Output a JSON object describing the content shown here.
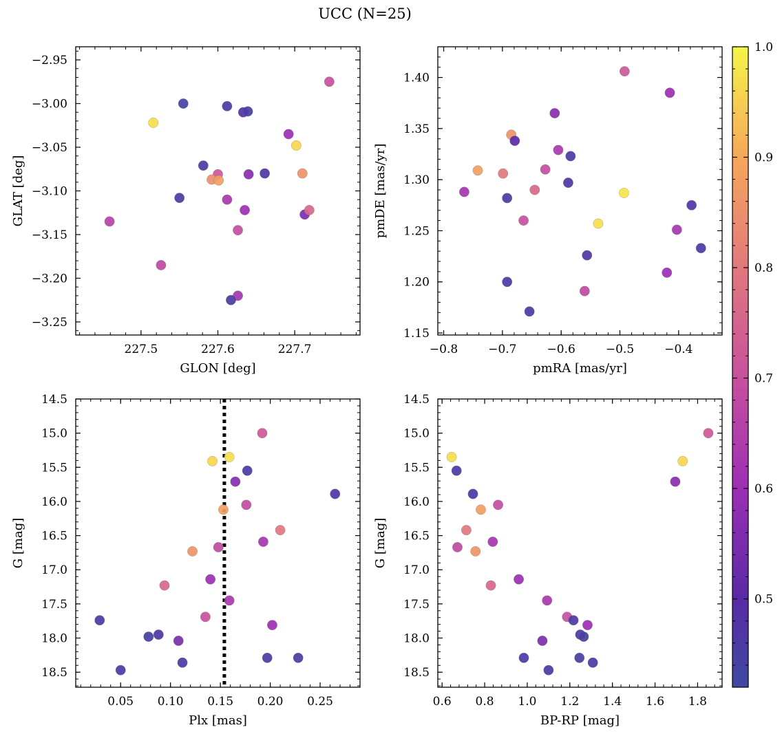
{
  "figure": {
    "title": "UCC (N=25)"
  },
  "colorbar": {
    "colormap": "plasma",
    "range": [
      0.42,
      1.0
    ],
    "ticks": [
      0.5,
      0.6,
      0.7,
      0.8,
      0.9,
      1.0
    ],
    "tick_labels": [
      "0.5",
      "0.6",
      "0.7",
      "0.8",
      "0.9",
      "1.0"
    ]
  },
  "chart_data": [
    {
      "type": "scatter",
      "xlabel": "GLON [deg]",
      "ylabel": "GLAT [deg]",
      "xlim": [
        227.415,
        227.785
      ],
      "ylim": [
        -3.265,
        -2.935
      ],
      "xticks": [
        227.5,
        227.6,
        227.7
      ],
      "xtick_labels": [
        "227.5",
        "227.6",
        "227.7"
      ],
      "yticks": [
        -2.95,
        -3.0,
        -3.05,
        -3.1,
        -3.15,
        -3.2,
        -3.25
      ],
      "ytick_labels": [
        "−2.95",
        "−3.00",
        "−3.05",
        "−3.10",
        "−3.15",
        "−3.20",
        "−3.25"
      ],
      "y_inverted": false,
      "points": [
        {
          "x": 227.555,
          "y": -3.0,
          "c": 0.44
        },
        {
          "x": 227.612,
          "y": -3.003,
          "c": 0.46
        },
        {
          "x": 227.633,
          "y": -3.01,
          "c": 0.48
        },
        {
          "x": 227.639,
          "y": -3.009,
          "c": 0.45
        },
        {
          "x": 227.516,
          "y": -3.022,
          "c": 0.97
        },
        {
          "x": 227.745,
          "y": -2.975,
          "c": 0.7
        },
        {
          "x": 227.692,
          "y": -3.035,
          "c": 0.6
        },
        {
          "x": 227.702,
          "y": -3.048,
          "c": 0.96
        },
        {
          "x": 227.581,
          "y": -3.071,
          "c": 0.46
        },
        {
          "x": 227.6,
          "y": -3.081,
          "c": 0.72
        },
        {
          "x": 227.592,
          "y": -3.087,
          "c": 0.85
        },
        {
          "x": 227.601,
          "y": -3.088,
          "c": 0.88
        },
        {
          "x": 227.64,
          "y": -3.081,
          "c": 0.57
        },
        {
          "x": 227.661,
          "y": -3.08,
          "c": 0.47
        },
        {
          "x": 227.71,
          "y": -3.08,
          "c": 0.86
        },
        {
          "x": 227.55,
          "y": -3.108,
          "c": 0.45
        },
        {
          "x": 227.612,
          "y": -3.11,
          "c": 0.63
        },
        {
          "x": 227.635,
          "y": -3.122,
          "c": 0.6
        },
        {
          "x": 227.713,
          "y": -3.127,
          "c": 0.55
        },
        {
          "x": 227.719,
          "y": -3.122,
          "c": 0.76
        },
        {
          "x": 227.459,
          "y": -3.135,
          "c": 0.66
        },
        {
          "x": 227.626,
          "y": -3.145,
          "c": 0.69
        },
        {
          "x": 227.526,
          "y": -3.185,
          "c": 0.68
        },
        {
          "x": 227.626,
          "y": -3.22,
          "c": 0.62
        },
        {
          "x": 227.617,
          "y": -3.225,
          "c": 0.45
        }
      ]
    },
    {
      "type": "scatter",
      "xlabel": "pmRA [mas/yr]",
      "ylabel": "pmDE [mas/yr]",
      "xlim": [
        -0.81,
        -0.326
      ],
      "ylim": [
        1.148,
        1.43
      ],
      "xticks": [
        -0.8,
        -0.7,
        -0.6,
        -0.5,
        -0.4
      ],
      "xtick_labels": [
        "−0.8",
        "−0.7",
        "−0.6",
        "−0.5",
        "−0.4"
      ],
      "yticks": [
        1.15,
        1.2,
        1.25,
        1.3,
        1.35,
        1.4
      ],
      "ytick_labels": [
        "1.15",
        "1.20",
        "1.25",
        "1.30",
        "1.35",
        "1.40"
      ],
      "y_inverted": false,
      "points": [
        {
          "x": -0.492,
          "y": 1.406,
          "c": 0.72
        },
        {
          "x": -0.415,
          "y": 1.385,
          "c": 0.6
        },
        {
          "x": -0.611,
          "y": 1.365,
          "c": 0.57
        },
        {
          "x": -0.685,
          "y": 1.344,
          "c": 0.86
        },
        {
          "x": -0.679,
          "y": 1.338,
          "c": 0.5
        },
        {
          "x": -0.605,
          "y": 1.329,
          "c": 0.63
        },
        {
          "x": -0.584,
          "y": 1.323,
          "c": 0.46
        },
        {
          "x": -0.742,
          "y": 1.309,
          "c": 0.88
        },
        {
          "x": -0.699,
          "y": 1.306,
          "c": 0.8
        },
        {
          "x": -0.627,
          "y": 1.31,
          "c": 0.69
        },
        {
          "x": -0.765,
          "y": 1.288,
          "c": 0.62
        },
        {
          "x": -0.645,
          "y": 1.29,
          "c": 0.76
        },
        {
          "x": -0.588,
          "y": 1.297,
          "c": 0.47
        },
        {
          "x": -0.493,
          "y": 1.287,
          "c": 0.98
        },
        {
          "x": -0.692,
          "y": 1.282,
          "c": 0.46
        },
        {
          "x": -0.378,
          "y": 1.275,
          "c": 0.47
        },
        {
          "x": -0.664,
          "y": 1.26,
          "c": 0.7
        },
        {
          "x": -0.537,
          "y": 1.257,
          "c": 0.97
        },
        {
          "x": -0.403,
          "y": 1.251,
          "c": 0.62
        },
        {
          "x": -0.362,
          "y": 1.233,
          "c": 0.46
        },
        {
          "x": -0.556,
          "y": 1.226,
          "c": 0.47
        },
        {
          "x": -0.42,
          "y": 1.209,
          "c": 0.6
        },
        {
          "x": -0.692,
          "y": 1.2,
          "c": 0.46
        },
        {
          "x": -0.56,
          "y": 1.191,
          "c": 0.68
        },
        {
          "x": -0.654,
          "y": 1.171,
          "c": 0.46
        }
      ]
    },
    {
      "type": "scatter",
      "xlabel": "Plx [mas]",
      "ylabel": "G [mag]",
      "xlim": [
        0.005,
        0.29
      ],
      "ylim": [
        18.72,
        14.5
      ],
      "xticks": [
        0.05,
        0.1,
        0.15,
        0.2,
        0.25
      ],
      "xtick_labels": [
        "0.05",
        "0.10",
        "0.15",
        "0.20",
        "0.25"
      ],
      "yticks": [
        14.5,
        15.0,
        15.5,
        16.0,
        16.5,
        17.0,
        17.5,
        18.0,
        18.5
      ],
      "ytick_labels": [
        "14.5",
        "15.0",
        "15.5",
        "16.0",
        "16.5",
        "17.0",
        "17.5",
        "18.0",
        "18.5"
      ],
      "y_inverted": true,
      "vline": {
        "x": 0.154,
        "style": "dotted",
        "color": "#000000"
      },
      "points": [
        {
          "x": 0.192,
          "y": 15.0,
          "c": 0.72
        },
        {
          "x": 0.159,
          "y": 15.35,
          "c": 0.97
        },
        {
          "x": 0.142,
          "y": 15.41,
          "c": 0.96
        },
        {
          "x": 0.177,
          "y": 15.55,
          "c": 0.46
        },
        {
          "x": 0.165,
          "y": 15.71,
          "c": 0.57
        },
        {
          "x": 0.265,
          "y": 15.89,
          "c": 0.47
        },
        {
          "x": 0.176,
          "y": 16.05,
          "c": 0.69
        },
        {
          "x": 0.153,
          "y": 16.12,
          "c": 0.88
        },
        {
          "x": 0.21,
          "y": 16.42,
          "c": 0.8
        },
        {
          "x": 0.193,
          "y": 16.59,
          "c": 0.62
        },
        {
          "x": 0.148,
          "y": 16.67,
          "c": 0.68
        },
        {
          "x": 0.122,
          "y": 16.73,
          "c": 0.86
        },
        {
          "x": 0.14,
          "y": 17.14,
          "c": 0.6
        },
        {
          "x": 0.094,
          "y": 17.23,
          "c": 0.76
        },
        {
          "x": 0.159,
          "y": 17.45,
          "c": 0.63
        },
        {
          "x": 0.135,
          "y": 17.69,
          "c": 0.7
        },
        {
          "x": 0.029,
          "y": 17.74,
          "c": 0.46
        },
        {
          "x": 0.202,
          "y": 17.81,
          "c": 0.6
        },
        {
          "x": 0.088,
          "y": 17.95,
          "c": 0.47
        },
        {
          "x": 0.078,
          "y": 17.98,
          "c": 0.45
        },
        {
          "x": 0.108,
          "y": 18.04,
          "c": 0.55
        },
        {
          "x": 0.197,
          "y": 18.29,
          "c": 0.46
        },
        {
          "x": 0.228,
          "y": 18.29,
          "c": 0.45
        },
        {
          "x": 0.112,
          "y": 18.36,
          "c": 0.46
        },
        {
          "x": 0.05,
          "y": 18.47,
          "c": 0.46
        }
      ]
    },
    {
      "type": "scatter",
      "xlabel": "BP-RP [mag]",
      "ylabel": "G [mag]",
      "xlim": [
        0.58,
        1.915
      ],
      "ylim": [
        18.72,
        14.5
      ],
      "xticks": [
        0.6,
        0.8,
        1.0,
        1.2,
        1.4,
        1.6,
        1.8
      ],
      "xtick_labels": [
        "0.6",
        "0.8",
        "1.0",
        "1.2",
        "1.4",
        "1.6",
        "1.8"
      ],
      "yticks": [
        14.5,
        15.0,
        15.5,
        16.0,
        16.5,
        17.0,
        17.5,
        18.0,
        18.5
      ],
      "ytick_labels": [
        "14.5",
        "15.0",
        "15.5",
        "16.0",
        "16.5",
        "17.0",
        "17.5",
        "18.0",
        "18.5"
      ],
      "y_inverted": true,
      "points": [
        {
          "x": 1.85,
          "y": 15.0,
          "c": 0.72
        },
        {
          "x": 0.645,
          "y": 15.35,
          "c": 0.97
        },
        {
          "x": 1.73,
          "y": 15.41,
          "c": 0.96
        },
        {
          "x": 0.668,
          "y": 15.55,
          "c": 0.46
        },
        {
          "x": 1.695,
          "y": 15.71,
          "c": 0.57
        },
        {
          "x": 0.745,
          "y": 15.89,
          "c": 0.47
        },
        {
          "x": 0.863,
          "y": 16.05,
          "c": 0.69
        },
        {
          "x": 0.782,
          "y": 16.12,
          "c": 0.88
        },
        {
          "x": 0.714,
          "y": 16.42,
          "c": 0.8
        },
        {
          "x": 0.838,
          "y": 16.59,
          "c": 0.62
        },
        {
          "x": 0.672,
          "y": 16.67,
          "c": 0.68
        },
        {
          "x": 0.757,
          "y": 16.73,
          "c": 0.86
        },
        {
          "x": 0.96,
          "y": 17.14,
          "c": 0.6
        },
        {
          "x": 0.829,
          "y": 17.23,
          "c": 0.76
        },
        {
          "x": 1.093,
          "y": 17.45,
          "c": 0.63
        },
        {
          "x": 1.187,
          "y": 17.69,
          "c": 0.7
        },
        {
          "x": 1.217,
          "y": 17.74,
          "c": 0.46
        },
        {
          "x": 1.283,
          "y": 17.81,
          "c": 0.6
        },
        {
          "x": 1.249,
          "y": 17.95,
          "c": 0.47
        },
        {
          "x": 1.265,
          "y": 17.98,
          "c": 0.45
        },
        {
          "x": 1.071,
          "y": 18.04,
          "c": 0.55
        },
        {
          "x": 0.984,
          "y": 18.29,
          "c": 0.46
        },
        {
          "x": 1.245,
          "y": 18.29,
          "c": 0.45
        },
        {
          "x": 1.308,
          "y": 18.36,
          "c": 0.46
        },
        {
          "x": 1.1,
          "y": 18.47,
          "c": 0.46
        }
      ]
    }
  ]
}
